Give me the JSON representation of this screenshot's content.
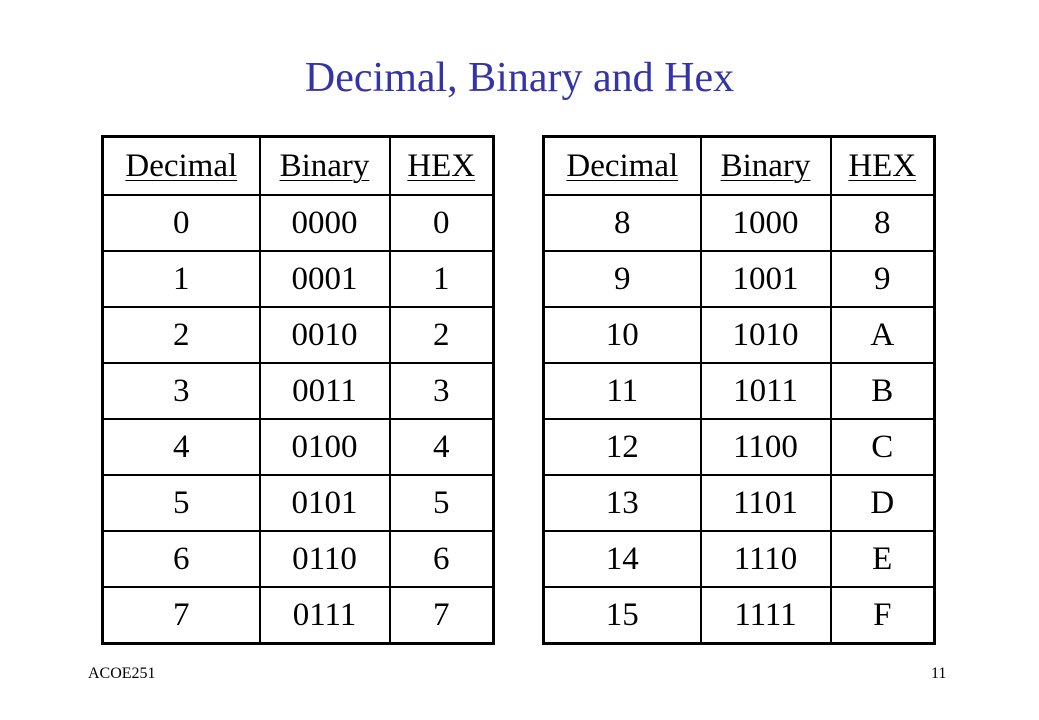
{
  "title": "Decimal, Binary and Hex",
  "headers": [
    "Decimal",
    "Binary",
    "HEX"
  ],
  "left_table": [
    [
      "0",
      "0000",
      "0"
    ],
    [
      "1",
      "0001",
      "1"
    ],
    [
      "2",
      "0010",
      "2"
    ],
    [
      "3",
      "0011",
      "3"
    ],
    [
      "4",
      "0100",
      "4"
    ],
    [
      "5",
      "0101",
      "5"
    ],
    [
      "6",
      "0110",
      "6"
    ],
    [
      "7",
      "0111",
      "7"
    ]
  ],
  "right_table": [
    [
      "8",
      "1000",
      "8"
    ],
    [
      "9",
      "1001",
      "9"
    ],
    [
      "10",
      "1010",
      "A"
    ],
    [
      "11",
      "1011",
      "B"
    ],
    [
      "12",
      "1100",
      "C"
    ],
    [
      "13",
      "1101",
      "D"
    ],
    [
      "14",
      "1110",
      "E"
    ],
    [
      "15",
      "1111",
      "F"
    ]
  ],
  "footer": {
    "course": "ACOE251",
    "page_number": "11"
  }
}
